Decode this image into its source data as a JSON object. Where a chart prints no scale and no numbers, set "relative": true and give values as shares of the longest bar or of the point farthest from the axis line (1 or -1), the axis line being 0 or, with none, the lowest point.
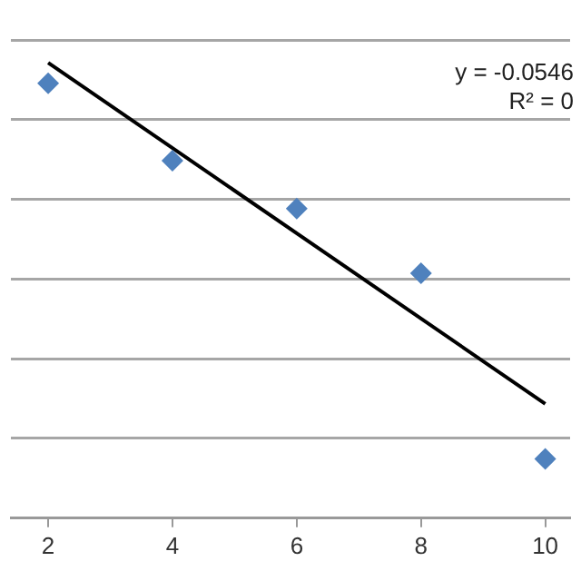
{
  "chart_data": {
    "type": "scatter",
    "relative": true,
    "series": [
      {
        "color": "#4f81bd",
        "marker": "diamond",
        "x": [
          2,
          4,
          6,
          8,
          10
        ],
        "values": [
          0.955,
          0.785,
          0.68,
          0.538,
          0.13
        ]
      },
      {
        "type": "line",
        "color": "#000000",
        "marker": "none",
        "x": [
          2,
          10
        ],
        "values": [
          1,
          0.251
        ]
      }
    ],
    "xlim": [
      1.4,
      10.4
    ],
    "xticks": [
      2,
      4,
      6,
      8,
      10
    ],
    "grid": "y",
    "legend": false,
    "annotations": [
      "y = -0.0546",
      "R² = 0"
    ]
  }
}
